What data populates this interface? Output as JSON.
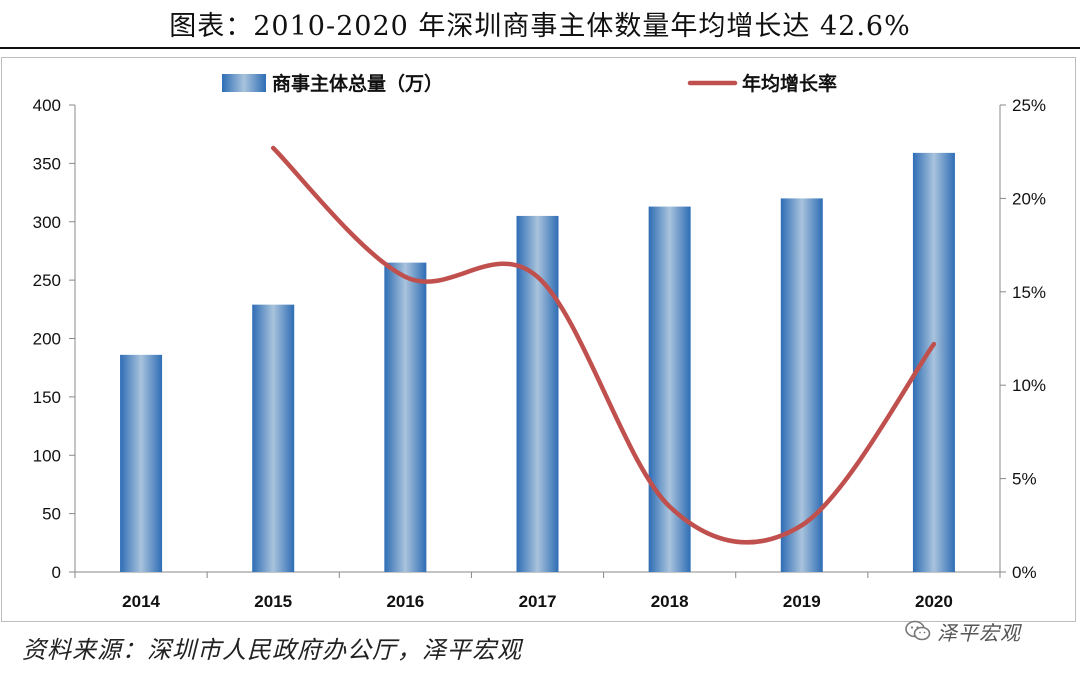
{
  "header": {
    "title": "图表：2010-2020 年深圳商事主体数量年均增长达 42.6%"
  },
  "footer": {
    "source": "资料来源：深圳市人民政府办公厅，泽平宏观",
    "watermark": "泽平宏观",
    "watermark_icon": "wechat-icon"
  },
  "colors": {
    "bar_edge": "#2e6db5",
    "bar_center": "#a9c3dc",
    "line": "#c0504d",
    "axis": "#888888"
  },
  "chart_data": {
    "type": "bar+line",
    "title": "图表：2010-2020 年深圳商事主体数量年均增长达 42.6%",
    "categories": [
      "2014",
      "2015",
      "2016",
      "2017",
      "2018",
      "2019",
      "2020"
    ],
    "legend_position": "top",
    "grid": false,
    "series": [
      {
        "name": "商事主体总量（万）",
        "type": "bar",
        "axis": "left",
        "values": [
          186,
          229,
          265,
          305,
          313,
          320,
          359
        ]
      },
      {
        "name": "年均增长率",
        "type": "line",
        "axis": "right",
        "values": [
          null,
          0.227,
          0.158,
          0.158,
          0.035,
          0.025,
          0.122
        ]
      }
    ],
    "y_left": {
      "ylim": [
        0,
        400
      ],
      "ticks": [
        0,
        50,
        100,
        150,
        200,
        250,
        300,
        350,
        400
      ],
      "tick_labels": [
        "0",
        "50",
        "100",
        "150",
        "200",
        "250",
        "300",
        "350",
        "400"
      ]
    },
    "y_right": {
      "ylim": [
        0,
        0.25
      ],
      "ticks": [
        0,
        0.05,
        0.1,
        0.15,
        0.2,
        0.25
      ],
      "tick_labels": [
        "0%",
        "5%",
        "10%",
        "15%",
        "20%",
        "25%"
      ]
    }
  }
}
